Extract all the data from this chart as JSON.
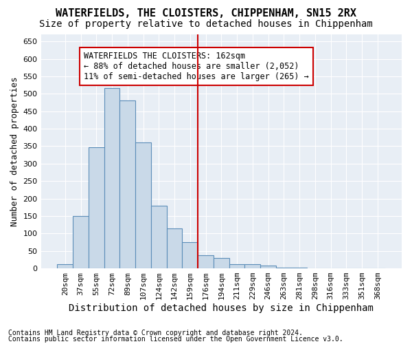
{
  "title": "WATERFIELDS, THE CLOISTERS, CHIPPENHAM, SN15 2RX",
  "subtitle": "Size of property relative to detached houses in Chippenham",
  "xlabel": "Distribution of detached houses by size in Chippenham",
  "ylabel": "Number of detached properties",
  "footnote1": "Contains HM Land Registry data © Crown copyright and database right 2024.",
  "footnote2": "Contains public sector information licensed under the Open Government Licence v3.0.",
  "categories": [
    "20sqm",
    "37sqm",
    "55sqm",
    "72sqm",
    "89sqm",
    "107sqm",
    "124sqm",
    "142sqm",
    "159sqm",
    "176sqm",
    "194sqm",
    "211sqm",
    "229sqm",
    "246sqm",
    "263sqm",
    "281sqm",
    "298sqm",
    "316sqm",
    "333sqm",
    "351sqm",
    "368sqm"
  ],
  "values": [
    12,
    150,
    346,
    517,
    481,
    360,
    180,
    115,
    75,
    38,
    29,
    12,
    12,
    8,
    3,
    2,
    1,
    0,
    0,
    0,
    0
  ],
  "bar_color": "#c9d9e8",
  "bar_edge_color": "#5b8db8",
  "vline_index": 8,
  "vline_color": "#cc0000",
  "annotation_text": "WATERFIELDS THE CLOISTERS: 162sqm\n← 88% of detached houses are smaller (2,052)\n11% of semi-detached houses are larger (265) →",
  "annotation_box_edge_color": "#cc0000",
  "ylim": [
    0,
    670
  ],
  "yticks": [
    0,
    50,
    100,
    150,
    200,
    250,
    300,
    350,
    400,
    450,
    500,
    550,
    600,
    650
  ],
  "bg_color": "#e8eef5",
  "grid_color": "#ffffff",
  "title_fontsize": 11,
  "subtitle_fontsize": 10,
  "xlabel_fontsize": 10,
  "ylabel_fontsize": 9,
  "tick_fontsize": 8,
  "annotation_fontsize": 8.5,
  "footnote_fontsize": 7
}
